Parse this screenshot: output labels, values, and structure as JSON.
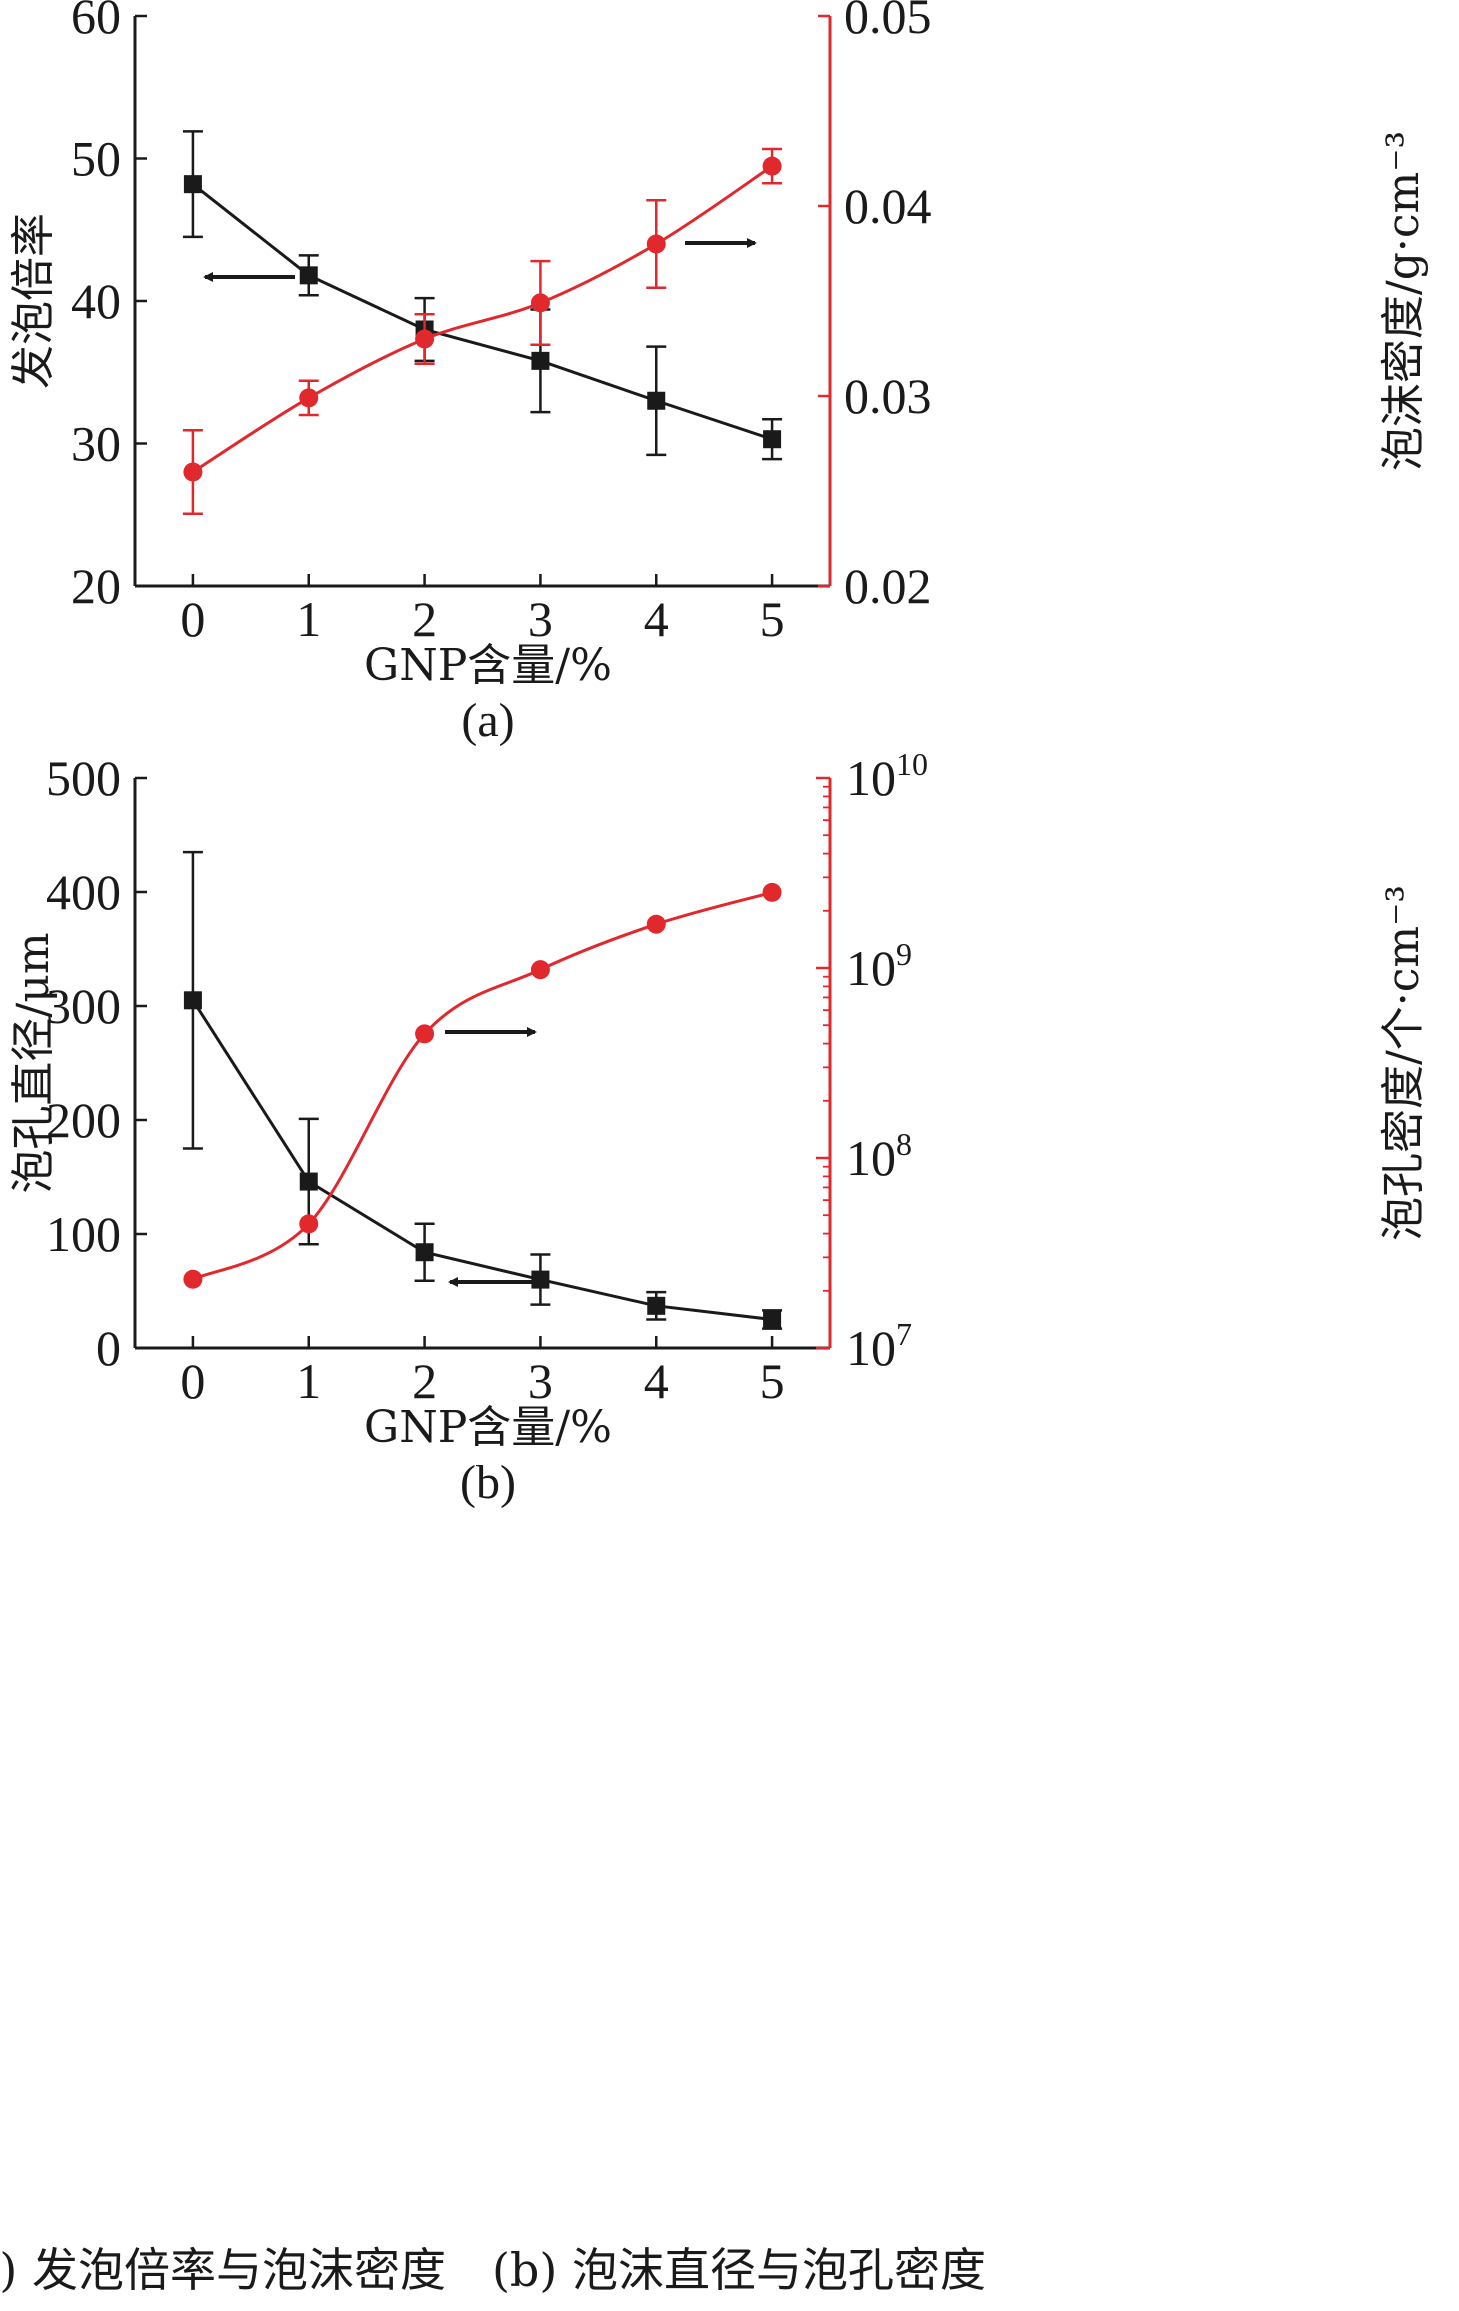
{
  "colors": {
    "black_series": "#1a1a1a",
    "red_series": "#e0282d"
  },
  "caption": "(a) 发泡倍率与泡沫密度　(b) 泡沫直径与泡孔密度",
  "chart_data": [
    {
      "type": "line",
      "panel_label": "(a)",
      "xlabel": "GNP含量/%",
      "ylabel": "发泡倍率",
      "y2label": "泡沫密度/g·cm⁻³",
      "x": [
        0,
        1,
        2,
        3,
        4,
        5
      ],
      "xlim": [
        -0.5,
        5.5
      ],
      "ylim": [
        20,
        60
      ],
      "y2lim": [
        0.02,
        0.05
      ],
      "y_ticks": [
        20,
        30,
        40,
        50,
        60
      ],
      "y2_ticks": [
        "0.02",
        "0.03",
        "0.04",
        "0.05"
      ],
      "series": [
        {
          "axis": "left",
          "marker": "square",
          "color": "#1a1a1a",
          "smooth": false,
          "values": [
            48.2,
            41.8,
            38.0,
            35.8,
            33.0,
            30.3
          ],
          "errors": [
            3.7,
            1.4,
            2.2,
            3.6,
            3.8,
            1.4
          ]
        },
        {
          "axis": "right",
          "marker": "circle",
          "color": "#e0282d",
          "smooth": true,
          "values": [
            0.026,
            0.0299,
            0.033,
            0.0349,
            0.038,
            0.0421
          ],
          "errors": [
            0.0022,
            0.0009,
            0.0013,
            0.0022,
            0.0023,
            0.0009
          ]
        }
      ],
      "annotations": [
        "arrow pointing left to the left axis near x=1",
        "arrow pointing right to the right axis near x=4"
      ]
    },
    {
      "type": "line",
      "panel_label": "(b)",
      "xlabel": "GNP含量/%",
      "ylabel": "泡孔直径/μm",
      "y2label": "泡孔密度/个·cm⁻³",
      "x": [
        0,
        1,
        2,
        3,
        4,
        5
      ],
      "xlim": [
        -0.5,
        5.5
      ],
      "ylim": [
        0,
        500
      ],
      "y2lim": [
        10000000,
        10000000000
      ],
      "y2_scale": "log",
      "y_ticks": [
        0,
        100,
        200,
        300,
        400,
        500
      ],
      "y2_ticks": [
        "10",
        "10",
        "10",
        "10"
      ],
      "y2_tick_exponents": [
        "7",
        "8",
        "9",
        "10"
      ],
      "series": [
        {
          "axis": "left",
          "marker": "square",
          "color": "#1a1a1a",
          "smooth": false,
          "values": [
            305,
            146,
            84,
            60,
            37,
            25
          ],
          "errors": [
            130,
            55,
            25,
            22,
            12,
            8
          ]
        },
        {
          "axis": "right",
          "marker": "circle",
          "color": "#e0282d",
          "smooth": true,
          "values": [
            23000000,
            45000000,
            450000000,
            980000000,
            1700000000,
            2500000000
          ],
          "errors": [
            0,
            0,
            0,
            0,
            0,
            0
          ]
        }
      ],
      "annotations": [
        "arrow pointing left to the left axis near x=2.5",
        "arrow pointing right to the right axis near x=2.5"
      ]
    }
  ]
}
